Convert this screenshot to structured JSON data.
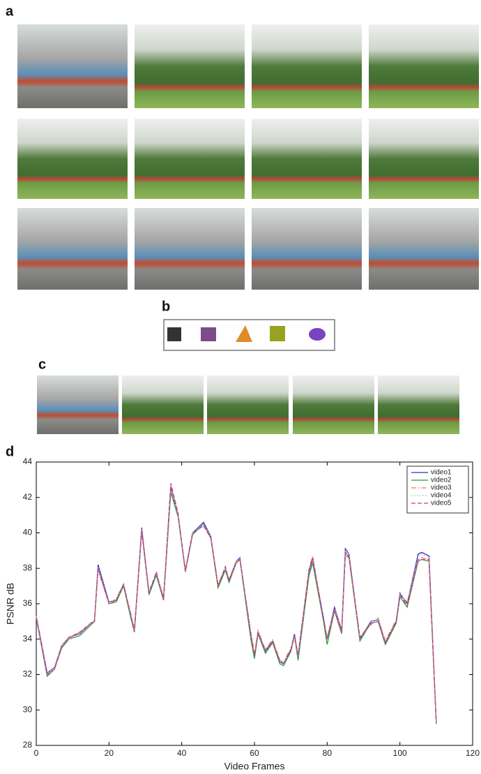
{
  "panels": [
    "a",
    "b",
    "c",
    "d"
  ],
  "chart_data": {
    "type": "line",
    "xlabel": "Video Frames",
    "ylabel": "PSNR dB",
    "xlim": [
      0,
      120
    ],
    "xticks": [
      0,
      20,
      40,
      60,
      80,
      100,
      120
    ],
    "ylim": [
      28,
      44
    ],
    "yticks": [
      28,
      30,
      32,
      34,
      36,
      38,
      40,
      42,
      44
    ],
    "grid": false,
    "legend": "upper right",
    "x": [
      0,
      3,
      5,
      7,
      9,
      12,
      15,
      16,
      17,
      20,
      22,
      24,
      26,
      27,
      29,
      31,
      33,
      35,
      37,
      39,
      41,
      43,
      46,
      48,
      50,
      52,
      53,
      55,
      56,
      59,
      60,
      61,
      63,
      65,
      67,
      68,
      70,
      71,
      72,
      75,
      76,
      79,
      80,
      82,
      84,
      85,
      86,
      89,
      92,
      94,
      96,
      99,
      100,
      102,
      105,
      106,
      108,
      110
    ],
    "series": [
      {
        "name": "video1",
        "color": "#3b2fb8",
        "line_style": "solid",
        "values": [
          35.3,
          32.1,
          32.4,
          33.6,
          34.1,
          34.3,
          34.9,
          35.0,
          38.2,
          36.1,
          36.2,
          37.1,
          35.3,
          34.5,
          40.3,
          36.6,
          37.7,
          36.3,
          42.6,
          41.0,
          37.9,
          40.0,
          40.6,
          39.8,
          37.0,
          38.0,
          37.3,
          38.4,
          38.6,
          34.2,
          33.0,
          34.4,
          33.3,
          33.9,
          32.7,
          32.6,
          33.4,
          34.3,
          33.0,
          37.8,
          38.5,
          35.2,
          34.0,
          35.8,
          34.5,
          39.1,
          38.8,
          34.0,
          35.0,
          35.1,
          33.8,
          35.0,
          36.6,
          36.0,
          38.8,
          38.9,
          38.7,
          29.3
        ]
      },
      {
        "name": "video2",
        "color": "#2f9a3a",
        "line_style": "solid",
        "values": [
          35.2,
          31.9,
          32.3,
          33.5,
          34.0,
          34.2,
          34.8,
          35.0,
          38.0,
          36.0,
          36.1,
          37.0,
          35.2,
          34.4,
          40.1,
          36.5,
          37.6,
          36.2,
          42.3,
          40.9,
          37.8,
          39.9,
          40.5,
          39.7,
          36.9,
          37.9,
          37.2,
          38.3,
          38.5,
          34.0,
          32.9,
          34.3,
          33.2,
          33.8,
          32.6,
          32.5,
          33.3,
          34.2,
          32.8,
          37.6,
          38.3,
          35.0,
          33.7,
          35.6,
          34.3,
          38.9,
          38.6,
          33.9,
          34.9,
          35.0,
          33.7,
          34.9,
          36.4,
          35.8,
          38.4,
          38.5,
          38.4,
          29.2
        ]
      },
      {
        "name": "video3",
        "color": "#e8814a",
        "line_style": "dashdot",
        "values": [
          35.3,
          32.0,
          32.4,
          33.6,
          34.0,
          34.4,
          34.9,
          35.0,
          37.9,
          36.0,
          36.3,
          37.1,
          35.4,
          34.6,
          40.2,
          36.7,
          37.7,
          36.4,
          42.7,
          41.0,
          37.9,
          40.0,
          40.4,
          39.8,
          37.1,
          38.0,
          37.4,
          38.4,
          38.5,
          34.4,
          33.2,
          34.5,
          33.4,
          34.0,
          32.8,
          32.7,
          33.5,
          34.1,
          33.1,
          38.0,
          38.7,
          35.1,
          34.1,
          35.7,
          34.6,
          38.7,
          38.6,
          34.1,
          34.8,
          35.2,
          33.9,
          35.1,
          36.5,
          36.1,
          38.5,
          38.6,
          38.5,
          29.3
        ]
      },
      {
        "name": "video4",
        "color": "#7fb6e0",
        "line_style": "dotted",
        "values": [
          35.3,
          32.1,
          32.4,
          33.7,
          34.1,
          34.3,
          34.9,
          35.1,
          38.1,
          36.1,
          36.2,
          37.1,
          35.3,
          34.5,
          40.2,
          36.6,
          37.7,
          36.3,
          42.5,
          41.0,
          37.9,
          40.0,
          40.5,
          39.8,
          37.0,
          38.0,
          37.3,
          38.4,
          38.6,
          34.2,
          33.1,
          34.4,
          33.3,
          33.9,
          32.7,
          32.6,
          33.4,
          34.3,
          33.0,
          37.8,
          38.4,
          35.2,
          34.0,
          35.7,
          34.5,
          39.0,
          38.8,
          34.0,
          35.0,
          35.1,
          33.8,
          35.0,
          36.6,
          36.0,
          38.7,
          38.8,
          38.6,
          29.3
        ]
      },
      {
        "name": "video5",
        "color": "#d8318f",
        "line_style": "dashed",
        "values": [
          35.2,
          32.0,
          32.3,
          33.6,
          34.1,
          34.4,
          34.9,
          35.0,
          38.0,
          36.0,
          36.2,
          37.1,
          35.4,
          34.4,
          40.1,
          36.6,
          37.8,
          36.2,
          42.8,
          41.1,
          37.8,
          40.0,
          40.4,
          39.7,
          37.0,
          38.1,
          37.3,
          38.3,
          38.5,
          34.3,
          33.1,
          34.3,
          33.4,
          33.8,
          32.8,
          32.6,
          33.4,
          34.2,
          33.1,
          37.9,
          38.6,
          35.1,
          34.0,
          35.6,
          34.4,
          38.9,
          38.7,
          34.1,
          34.9,
          35.0,
          33.8,
          35.0,
          36.5,
          35.9,
          38.5,
          38.5,
          38.5,
          29.3
        ]
      }
    ]
  }
}
